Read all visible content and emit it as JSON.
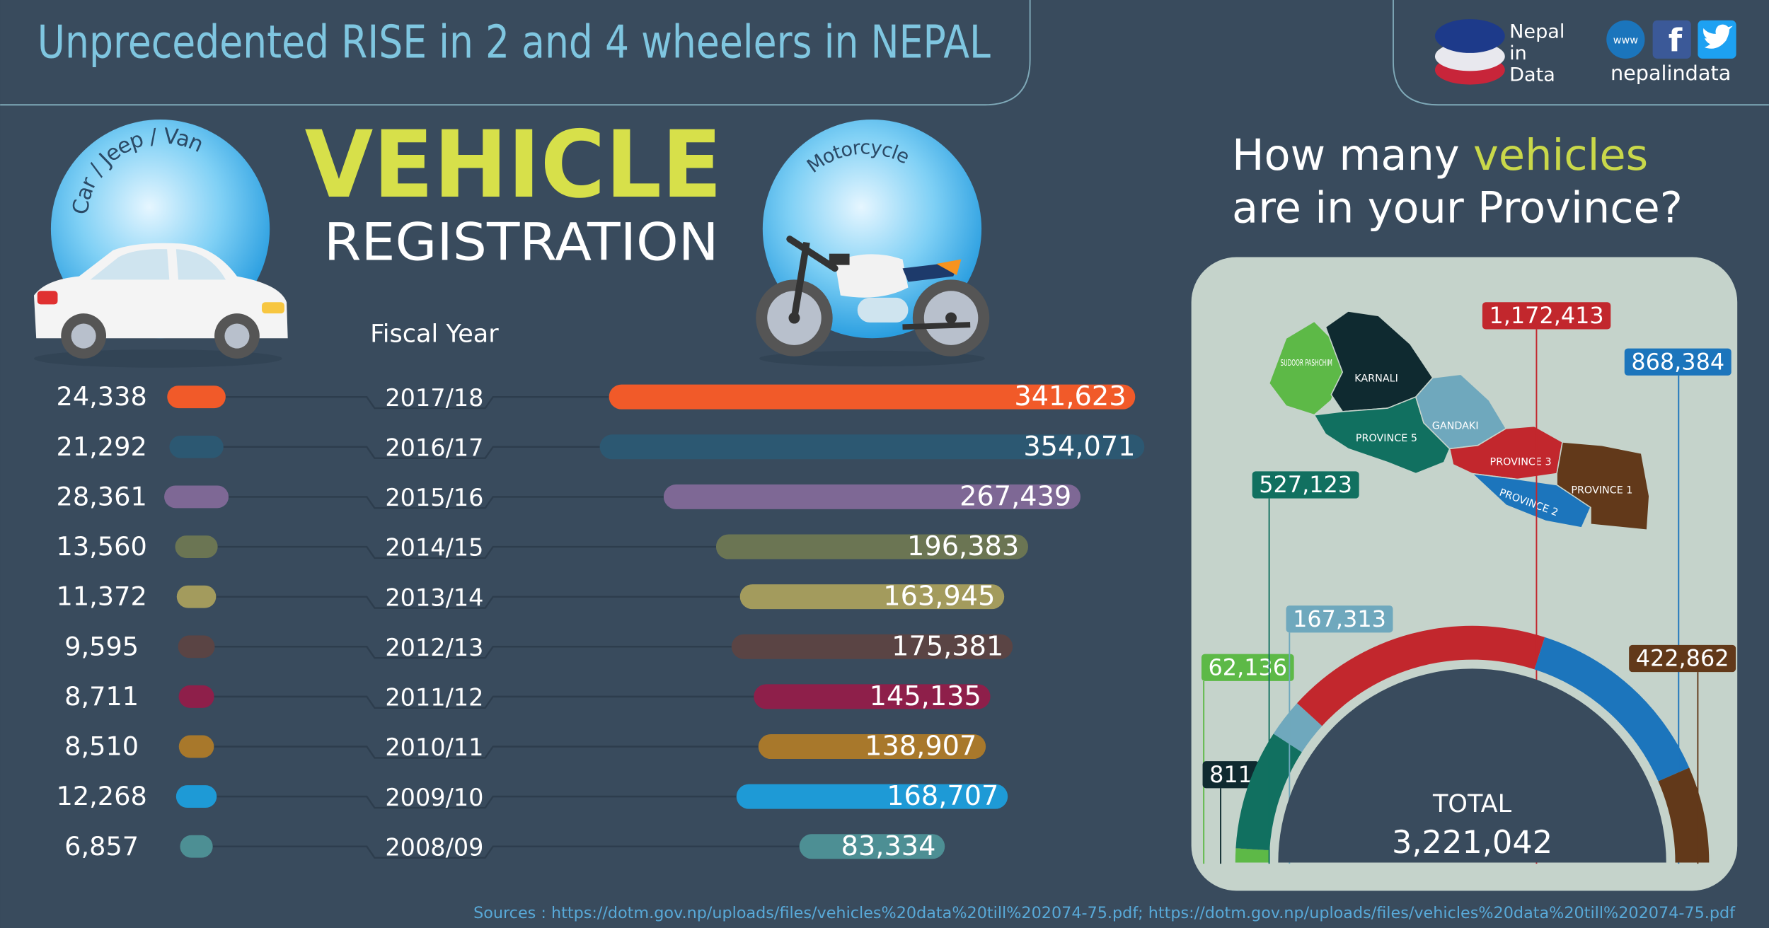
{
  "header": {
    "title": "Unprecedented RISE in 2 and 4 wheelers in NEPAL",
    "brand": [
      "Nepal",
      "in",
      "Data"
    ],
    "web_icon": "www",
    "handle": "nepalindata"
  },
  "chart_data": [
    {
      "type": "bar",
      "title": "VEHICLE",
      "subtitle": "REGISTRATION",
      "category_label": "Fiscal Year",
      "categories": [
        "2017/18",
        "2016/17",
        "2015/16",
        "2014/15",
        "2013/14",
        "2012/13",
        "2011/12",
        "2010/11",
        "2009/10",
        "2008/09"
      ],
      "colors": [
        "#f15a29",
        "#2c5872",
        "#7e6895",
        "#6b7553",
        "#a39b5d",
        "#5a4444",
        "#8e1f4a",
        "#a8782b",
        "#1e9ad6",
        "#4d8f94"
      ],
      "series": [
        {
          "name": "Car / Jeep / Van",
          "values": [
            24338,
            21292,
            28361,
            13560,
            11372,
            9595,
            8711,
            8510,
            12268,
            6857
          ],
          "value_labels": [
            "24,338",
            "21,292",
            "28,361",
            "13,560",
            "11,372",
            "9,595",
            "8,711",
            "8,510",
            "12,268",
            "6,857"
          ]
        },
        {
          "name": "Motorcycle",
          "values": [
            341623,
            354071,
            267439,
            196383,
            163945,
            175381,
            145135,
            138907,
            168707,
            83334
          ],
          "value_labels": [
            "341,623",
            "354,071",
            "267,439",
            "196,383",
            "163,945",
            "175,381",
            "145,135",
            "138,907",
            "168,707",
            "83,334"
          ]
        }
      ]
    },
    {
      "type": "donut",
      "title": [
        "How many",
        "vehicles",
        "are in your Province?"
      ],
      "categories": [
        "SUDOOR PASHCHIM",
        "KARNALI",
        "PROVINCE 5",
        "GANDAKI",
        "PROVINCE 3",
        "PROVINCE 2",
        "PROVINCE 1"
      ],
      "colors": [
        "#5db947",
        "#0f2a30",
        "#117060",
        "#6fa8bd",
        "#c2272d",
        "#1c75bc",
        "#62391a"
      ],
      "values": [
        62136,
        811,
        527123,
        167313,
        1172413,
        868384,
        422862
      ],
      "value_labels": [
        "62,136",
        "811",
        "527,123",
        "167,313",
        "1,172,413",
        "868,384",
        "422,862"
      ],
      "total_label": "TOTAL",
      "total": {
        "value": 3221042,
        "label": "3,221,042"
      }
    }
  ],
  "sources": "Sources : https://dotm.gov.np/uploads/files/vehicles%20data%20till%202074-75.pdf;  https://dotm.gov.np/uploads/files/vehicles%20data%20till%202074-75.pdf"
}
